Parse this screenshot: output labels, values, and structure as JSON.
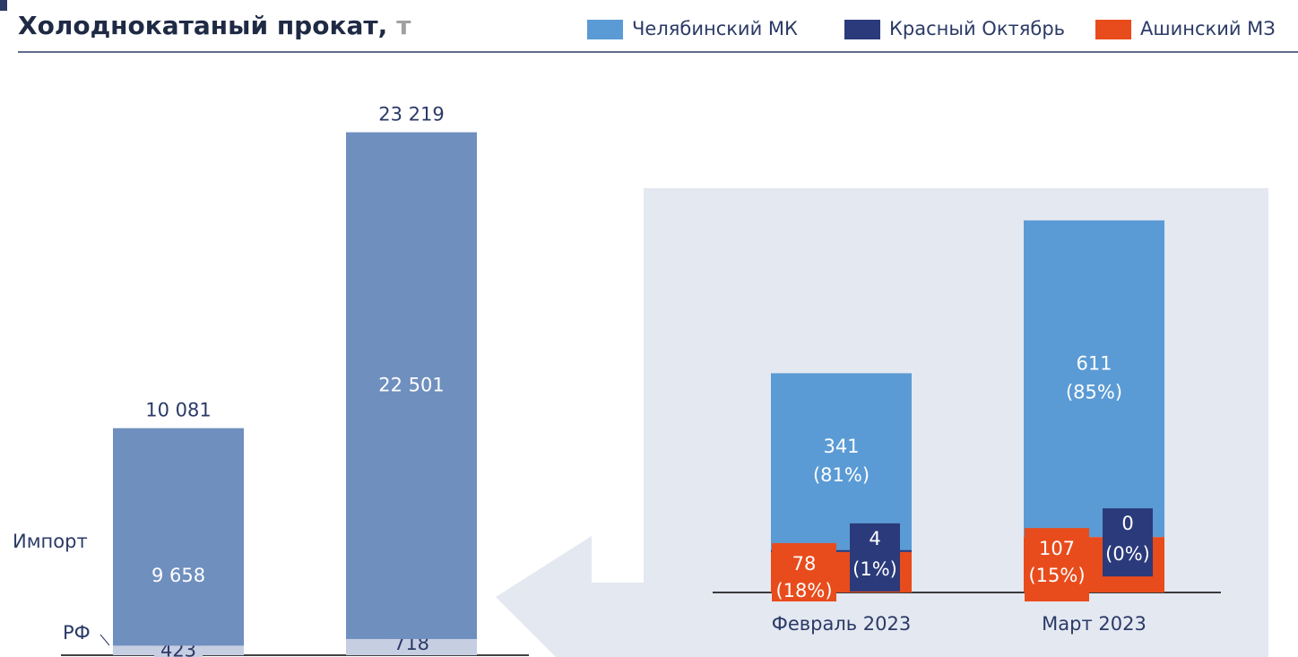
{
  "chart_data": [
    {
      "type": "stacked-bar",
      "title": "Холоднокатаный прокат,",
      "unit": "т",
      "categories": [
        null,
        null
      ],
      "totals": [
        10081,
        23219
      ],
      "total_labels": [
        "10 081",
        "23 219"
      ],
      "ylim": [
        0,
        27500
      ],
      "series": [
        {
          "name": "РФ",
          "color": "#c6cee2",
          "values": [
            423,
            718
          ],
          "value_labels": [
            "423",
            "718"
          ]
        },
        {
          "name": "Импорт",
          "color": "#6f8fbe",
          "values": [
            9658,
            22501
          ],
          "value_labels": [
            "9 658",
            "22 501"
          ]
        }
      ]
    },
    {
      "type": "stacked-bar",
      "categories": [
        "Февраль 2023",
        "Март 2023"
      ],
      "ylim": [
        0,
        780
      ],
      "series": [
        {
          "name": "Челябинский МК",
          "color": "#5b9bd5",
          "values": [
            341,
            611
          ],
          "share_labels": [
            "(81%)",
            "(85%)"
          ]
        },
        {
          "name": "Красный Октябрь",
          "color": "#2b3a7a",
          "values": [
            4,
            0
          ],
          "share_labels": [
            "(1%)",
            "(0%)"
          ]
        },
        {
          "name": "Ашинский МЗ",
          "color": "#e84c1c",
          "values": [
            78,
            107
          ],
          "share_labels": [
            "(18%)",
            "(15%)"
          ]
        }
      ]
    }
  ]
}
